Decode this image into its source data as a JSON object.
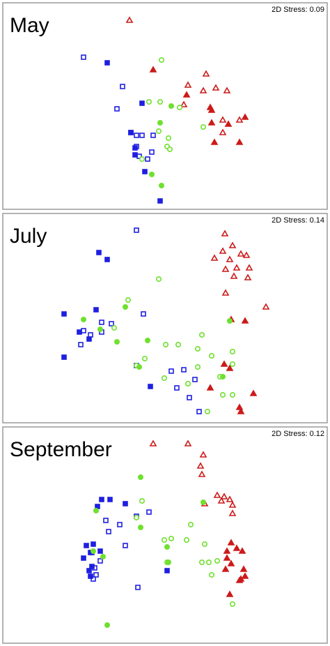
{
  "chart_data": [
    {
      "type": "scatter",
      "title": "May",
      "annotation": "2D Stress: 0.09",
      "xlim": [
        0,
        466
      ],
      "ylim": [
        0,
        296
      ],
      "series": [
        {
          "color": "#cc1a1a",
          "marker": "triangle",
          "filled": false,
          "x": [
            182,
            292,
            266,
            288,
            306,
            322,
            260,
            316,
            340,
            316
          ],
          "values": [
            271,
            194,
            178,
            170,
            174,
            170,
            150,
            128,
            128,
            110
          ]
        },
        {
          "color": "#cc1a1a",
          "marker": "triangle",
          "filled": true,
          "x": [
            216,
            264,
            298,
            348,
            300,
            324,
            304,
            340,
            300
          ],
          "values": [
            200,
            164,
            146,
            132,
            124,
            122,
            96,
            96,
            142
          ]
        },
        {
          "color": "#1f1fe0",
          "marker": "square",
          "filled": false,
          "x": [
            116,
            172,
            164,
            184,
            192,
            200,
            216,
            192,
            214,
            208,
            196
          ],
          "values": [
            218,
            176,
            144,
            110,
            106,
            106,
            106,
            90,
            82,
            72,
            76
          ]
        },
        {
          "color": "#1f1fe0",
          "marker": "square",
          "filled": true,
          "x": [
            150,
            200,
            184,
            190,
            190,
            204,
            226
          ],
          "values": [
            210,
            152,
            110,
            88,
            78,
            54,
            12
          ]
        },
        {
          "color": "#6fe02e",
          "marker": "circle",
          "filled": false,
          "x": [
            228,
            210,
            226,
            254,
            224,
            238,
            236,
            240,
            288,
            200
          ],
          "values": [
            214,
            154,
            154,
            146,
            112,
            102,
            90,
            86,
            118,
            72
          ]
        },
        {
          "color": "#6fe02e",
          "marker": "circle",
          "filled": true,
          "x": [
            242,
            226,
            214,
            228
          ],
          "values": [
            148,
            124,
            50,
            34
          ]
        }
      ]
    },
    {
      "type": "scatter",
      "title": "July",
      "annotation": "2D Stress: 0.14",
      "xlim": [
        0,
        466
      ],
      "ylim": [
        0,
        300
      ],
      "series": [
        {
          "color": "#cc1a1a",
          "marker": "triangle",
          "filled": false,
          "x": [
            319,
            330,
            316,
            342,
            304,
            326,
            350,
            320,
            336,
            354,
            332,
            352,
            378,
            320
          ],
          "values": [
            271,
            254,
            246,
            242,
            236,
            234,
            240,
            220,
            222,
            222,
            210,
            208,
            166,
            186
          ]
        },
        {
          "color": "#cc1a1a",
          "marker": "triangle",
          "filled": true,
          "x": [
            328,
            348,
            318,
            326,
            298,
            360,
            340,
            342
          ],
          "values": [
            148,
            146,
            84,
            78,
            50,
            42,
            22,
            16
          ]
        },
        {
          "color": "#1f1fe0",
          "marker": "square",
          "filled": false,
          "x": [
            192,
            202,
            142,
            156,
            116,
            142,
            126,
            112,
            192,
            242,
            260,
            276,
            250,
            268,
            282
          ],
          "values": [
            276,
            156,
            144,
            142,
            132,
            130,
            126,
            112,
            82,
            74,
            76,
            62,
            50,
            36,
            16
          ]
        },
        {
          "color": "#1f1fe0",
          "marker": "square",
          "filled": true,
          "x": [
            138,
            150,
            88,
            134,
            110,
            124,
            88,
            212
          ],
          "values": [
            244,
            234,
            156,
            162,
            130,
            120,
            94,
            52
          ]
        },
        {
          "color": "#6fe02e",
          "marker": "circle",
          "filled": false,
          "x": [
            224,
            180,
            160,
            286,
            234,
            252,
            280,
            204,
            330,
            300,
            280,
            330,
            232,
            192,
            312,
            266,
            316,
            330,
            294
          ],
          "values": [
            206,
            176,
            136,
            126,
            112,
            112,
            106,
            92,
            102,
            96,
            80,
            84,
            64,
            82,
            66,
            56,
            40,
            40,
            16
          ]
        },
        {
          "color": "#6fe02e",
          "marker": "circle",
          "filled": true,
          "x": [
            176,
            116,
            140,
            164,
            208,
            196,
            326,
            316
          ],
          "values": [
            166,
            148,
            134,
            116,
            118,
            80,
            146,
            66
          ]
        }
      ]
    },
    {
      "type": "scatter",
      "title": "September",
      "annotation": "2D Stress: 0.12",
      "xlim": [
        0,
        466
      ],
      "ylim": [
        0,
        310
      ],
      "series": [
        {
          "color": "#cc1a1a",
          "marker": "triangle",
          "filled": false,
          "x": [
            216,
            266,
            288,
            284,
            286,
            308,
            318,
            326,
            314,
            330,
            290,
            330
          ],
          "values": [
            286,
            286,
            270,
            254,
            242,
            212,
            210,
            206,
            204,
            198,
            200,
            186
          ]
        },
        {
          "color": "#cc1a1a",
          "marker": "triangle",
          "filled": true,
          "x": [
            328,
            336,
            344,
            322,
            322,
            328,
            320,
            346,
            348,
            342,
            340,
            326
          ],
          "values": [
            144,
            136,
            132,
            132,
            122,
            114,
            106,
            106,
            96,
            92,
            90,
            70
          ]
        },
        {
          "color": "#1f1fe0",
          "marker": "square",
          "filled": false,
          "x": [
            192,
            148,
            168,
            210,
            152,
            176,
            128,
            140,
            132,
            134,
            130,
            194
          ],
          "values": [
            182,
            176,
            170,
            188,
            160,
            140,
            130,
            118,
            108,
            98,
            92,
            80
          ]
        },
        {
          "color": "#1f1fe0",
          "marker": "square",
          "filled": true,
          "x": [
            142,
            154,
            176,
            136,
            120,
            130,
            126,
            140,
            116,
            128,
            124,
            126,
            236
          ],
          "values": [
            206,
            206,
            200,
            196,
            140,
            142,
            130,
            132,
            122,
            110,
            104,
            96,
            104
          ]
        },
        {
          "color": "#6fe02e",
          "marker": "circle",
          "filled": false,
          "x": [
            200,
            192,
            232,
            242,
            270,
            264,
            290,
            236,
            296,
            308,
            330,
            300,
            286
          ],
          "values": [
            204,
            180,
            148,
            150,
            170,
            148,
            142,
            116,
            116,
            118,
            56,
            98,
            116
          ]
        },
        {
          "color": "#6fe02e",
          "marker": "circle",
          "filled": true,
          "x": [
            198,
            198,
            134,
            130,
            144,
            236,
            238,
            150,
            288
          ],
          "values": [
            238,
            166,
            190,
            132,
            124,
            138,
            116,
            26,
            202
          ]
        }
      ]
    }
  ]
}
